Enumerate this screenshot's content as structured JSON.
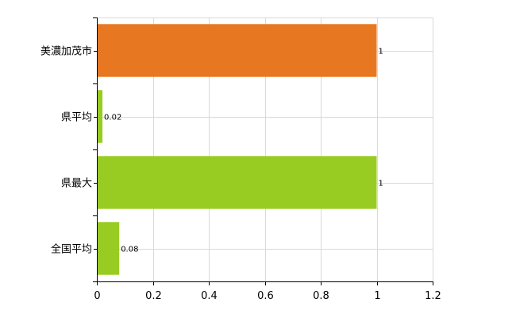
{
  "chart_data": {
    "type": "bar",
    "orientation": "horizontal",
    "categories": [
      "美濃加茂市",
      "県平均",
      "県最大",
      "全国平均"
    ],
    "values": [
      1,
      0.02,
      1,
      0.08
    ],
    "value_labels": [
      "1",
      "0.02",
      "1",
      "0.08"
    ],
    "colors": [
      "#e87722",
      "#99cc22",
      "#99cc22",
      "#99cc22"
    ],
    "xlim": [
      0,
      1.2
    ],
    "xticks": [
      0,
      0.2,
      0.4,
      0.6,
      0.8,
      1,
      1.2
    ],
    "xtick_labels": [
      "0",
      "0.2",
      "0.4",
      "0.6",
      "0.8",
      "1",
      "1.2"
    ],
    "grid": true,
    "legend": false
  }
}
